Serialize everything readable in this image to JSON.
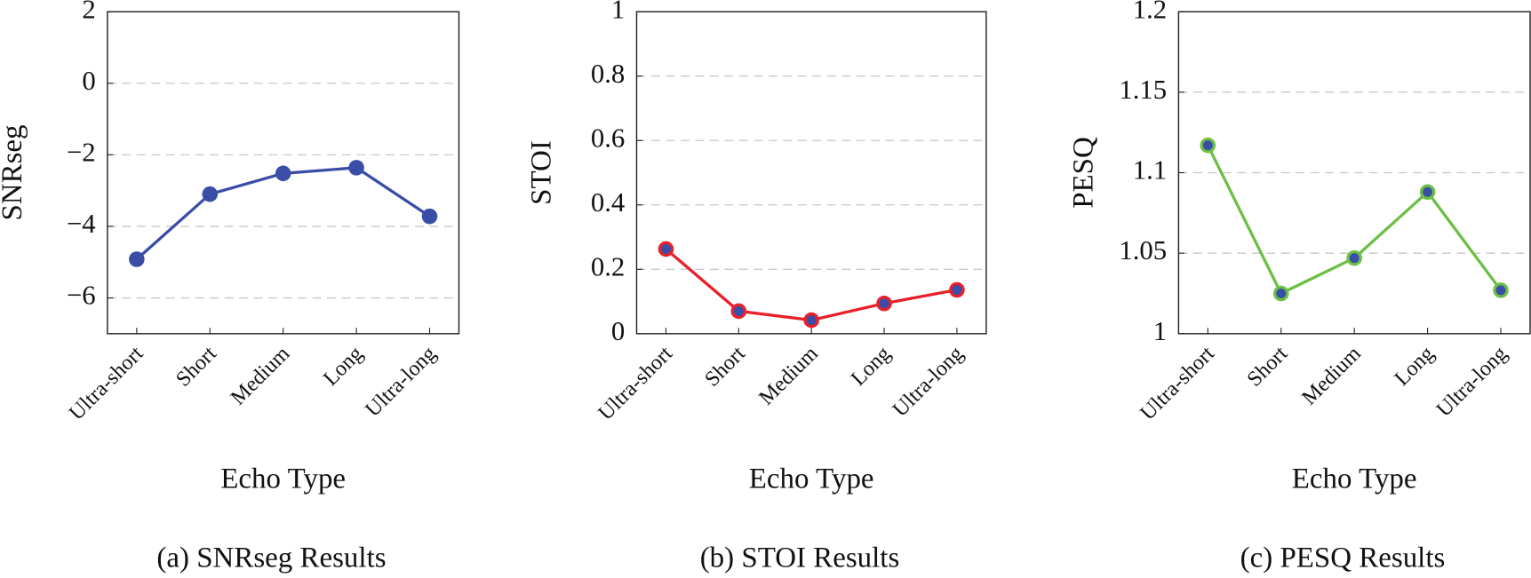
{
  "chart_data": [
    {
      "type": "line",
      "caption": "(a) SNRseg Results",
      "ylabel": "SNRseg",
      "xlabel": "Echo Type",
      "categories": [
        "Ultra-short",
        "Short",
        "Medium",
        "Long",
        "Ultra-long"
      ],
      "values": [
        -4.92,
        -3.1,
        -2.52,
        -2.36,
        -3.72
      ],
      "color": "#3a4ea8",
      "marker_color": "#3a4ea8",
      "ylim": [
        -7,
        2
      ],
      "yticks": [
        {
          "value": -6,
          "label": "−6"
        },
        {
          "value": -4,
          "label": "−4"
        },
        {
          "value": -2,
          "label": "−2"
        },
        0,
        2
      ],
      "grid": true
    },
    {
      "type": "line",
      "caption": "(b) STOI Results",
      "ylabel": "STOI",
      "xlabel": "Echo Type",
      "categories": [
        "Ultra-short",
        "Short",
        "Medium",
        "Long",
        "Ultra-long"
      ],
      "values": [
        0.263,
        0.07,
        0.042,
        0.094,
        0.136
      ],
      "color": "#e8202a",
      "marker_color": "#3a4ea8",
      "ylim": [
        0,
        1
      ],
      "yticks": [
        0,
        0.2,
        0.4,
        0.6,
        0.8,
        1
      ],
      "grid": true
    },
    {
      "type": "line",
      "caption": "(c) PESQ Results",
      "ylabel": "PESQ",
      "xlabel": "Echo Type",
      "categories": [
        "Ultra-short",
        "Short",
        "Medium",
        "Long",
        "Ultra-long"
      ],
      "values": [
        1.117,
        1.025,
        1.047,
        1.088,
        1.027
      ],
      "color": "#6cbf45",
      "marker_color": "#3a4ea8",
      "ylim": [
        1,
        1.2
      ],
      "yticks": [
        1,
        1.05,
        1.1,
        1.15,
        1.2
      ],
      "grid": true
    }
  ]
}
